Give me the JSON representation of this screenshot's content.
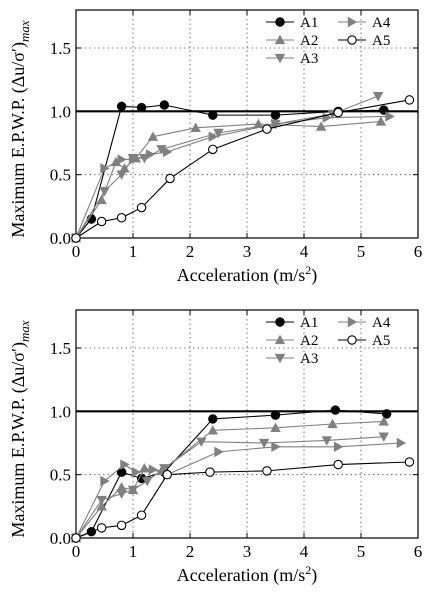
{
  "chart_data": [
    {
      "type": "line",
      "xlabel": "Acceleration (m/s²)",
      "ylabel": "Maximum E.P.W.P. (Δu/σ′)max",
      "xlim": [
        0,
        6
      ],
      "ylim": [
        0,
        1.8
      ],
      "xticks": [
        0,
        1,
        2,
        3,
        4,
        5,
        6
      ],
      "yticks": [
        0.0,
        0.5,
        1.0,
        1.5
      ],
      "yticklabels": [
        "0.0",
        "0.5",
        "1.0",
        "1.5"
      ],
      "reference_line": 1.0,
      "grid": "dotted",
      "legend_position": "top-right",
      "series": [
        {
          "name": "A1",
          "marker": "filled-circle",
          "color": "#000000",
          "x": [
            0,
            0.27,
            0.8,
            1.15,
            1.55,
            2.4,
            3.5,
            4.6,
            5.4
          ],
          "y": [
            0,
            0.15,
            1.04,
            1.03,
            1.05,
            0.97,
            0.97,
            1.0,
            1.01
          ]
        },
        {
          "name": "A2",
          "marker": "triangle-up",
          "color": "#808080",
          "x": [
            0,
            0.45,
            0.7,
            0.85,
            1.05,
            1.35,
            2.1,
            3.2,
            4.3,
            5.35
          ],
          "y": [
            0,
            0.3,
            0.6,
            0.55,
            0.63,
            0.8,
            0.87,
            0.9,
            0.88,
            0.92
          ]
        },
        {
          "name": "A3",
          "marker": "triangle-down",
          "color": "#808080",
          "x": [
            0,
            0.5,
            0.8,
            1.0,
            1.2,
            1.5,
            2.5,
            3.5,
            4.5,
            5.3
          ],
          "y": [
            0,
            0.37,
            0.5,
            0.63,
            0.63,
            0.7,
            0.83,
            0.9,
            0.98,
            1.12
          ]
        },
        {
          "name": "A4",
          "marker": "triangle-right",
          "color": "#808080",
          "x": [
            0,
            0.5,
            0.8,
            1.0,
            1.3,
            1.6,
            2.4,
            3.5,
            4.4,
            5.5
          ],
          "y": [
            0,
            0.55,
            0.62,
            0.62,
            0.66,
            0.68,
            0.8,
            0.9,
            0.95,
            0.96
          ]
        },
        {
          "name": "A5",
          "marker": "open-circle",
          "color": "#000000",
          "x": [
            0,
            0.45,
            0.8,
            1.15,
            1.65,
            2.4,
            3.35,
            4.6,
            5.85
          ],
          "y": [
            0,
            0.13,
            0.16,
            0.24,
            0.47,
            0.7,
            0.86,
            0.99,
            1.09
          ]
        }
      ]
    },
    {
      "type": "line",
      "xlabel": "Acceleration (m/s²)",
      "ylabel": "Maximum E.P.W.P. (Δu/σ′)max",
      "xlim": [
        0,
        6
      ],
      "ylim": [
        0,
        1.8
      ],
      "xticks": [
        0,
        1,
        2,
        3,
        4,
        5,
        6
      ],
      "yticks": [
        0.0,
        0.5,
        1.0,
        1.5
      ],
      "yticklabels": [
        "0.0",
        "0.5",
        "1.0",
        "1.5"
      ],
      "reference_line": 1.0,
      "grid": "dotted",
      "legend_position": "top-right",
      "series": [
        {
          "name": "A1",
          "marker": "filled-circle",
          "color": "#000000",
          "x": [
            0,
            0.27,
            0.8,
            1.15,
            1.55,
            2.4,
            3.5,
            4.55,
            5.45
          ],
          "y": [
            0,
            0.05,
            0.52,
            0.47,
            0.52,
            0.94,
            0.97,
            1.01,
            0.98
          ]
        },
        {
          "name": "A2",
          "marker": "triangle-up",
          "color": "#808080",
          "x": [
            0,
            0.45,
            0.8,
            1.0,
            1.2,
            1.5,
            2.4,
            3.5,
            4.5,
            5.4
          ],
          "y": [
            0,
            0.25,
            0.4,
            0.38,
            0.55,
            0.53,
            0.85,
            0.87,
            0.9,
            0.92
          ]
        },
        {
          "name": "A3",
          "marker": "triangle-down",
          "color": "#808080",
          "x": [
            0,
            0.45,
            0.8,
            1.0,
            1.25,
            1.55,
            2.2,
            3.3,
            4.4,
            5.4
          ],
          "y": [
            0,
            0.3,
            0.35,
            0.38,
            0.45,
            0.55,
            0.76,
            0.75,
            0.77,
            0.8
          ]
        },
        {
          "name": "A4",
          "marker": "triangle-right",
          "color": "#808080",
          "x": [
            0,
            0.5,
            0.85,
            1.05,
            1.35,
            1.6,
            2.5,
            3.5,
            4.6,
            5.7
          ],
          "y": [
            0,
            0.45,
            0.58,
            0.52,
            0.54,
            0.5,
            0.68,
            0.72,
            0.72,
            0.75
          ]
        },
        {
          "name": "A5",
          "marker": "open-circle",
          "color": "#000000",
          "x": [
            0,
            0.45,
            0.8,
            1.15,
            1.6,
            2.35,
            3.35,
            4.6,
            5.85
          ],
          "y": [
            0,
            0.08,
            0.1,
            0.18,
            0.5,
            0.52,
            0.53,
            0.58,
            0.6
          ]
        }
      ]
    }
  ]
}
